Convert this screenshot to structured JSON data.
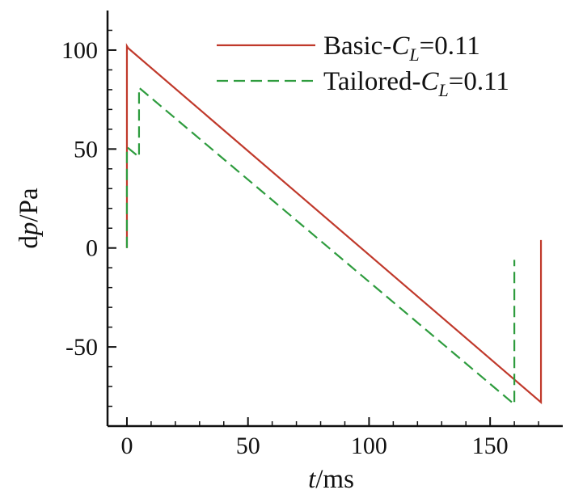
{
  "chart_data": {
    "type": "line",
    "xlabel": {
      "italic": "t",
      "rest": "/ms"
    },
    "ylabel": {
      "prefix": "d",
      "italic": "p",
      "rest": "/Pa"
    },
    "xlim": [
      -8,
      180
    ],
    "ylim": [
      -90,
      120
    ],
    "xticks": [
      0,
      50,
      100,
      150
    ],
    "yticks": [
      100,
      50,
      0,
      -50
    ],
    "xtick_labels": [
      "0",
      "50",
      "100",
      "150"
    ],
    "ytick_labels": [
      "100",
      "50",
      "0",
      "-50"
    ],
    "series": [
      {
        "name": "Basic",
        "legend": {
          "pre": "Basic-",
          "italic": "C",
          "sub": "L",
          "post": "=0.11"
        },
        "color": "#c0392b",
        "dash": "solid",
        "x": [
          0,
          0,
          0.5,
          171,
          171
        ],
        "y": [
          0,
          102,
          101,
          -78,
          4
        ]
      },
      {
        "name": "Tailored",
        "legend": {
          "pre": "Tailored-",
          "italic": "C",
          "sub": "L",
          "post": "=0.11"
        },
        "color": "#2e9c3e",
        "dash": "dashed",
        "x": [
          0,
          0,
          5,
          5,
          160,
          160
        ],
        "y": [
          0,
          51,
          46,
          81,
          -79,
          -6
        ]
      }
    ]
  }
}
